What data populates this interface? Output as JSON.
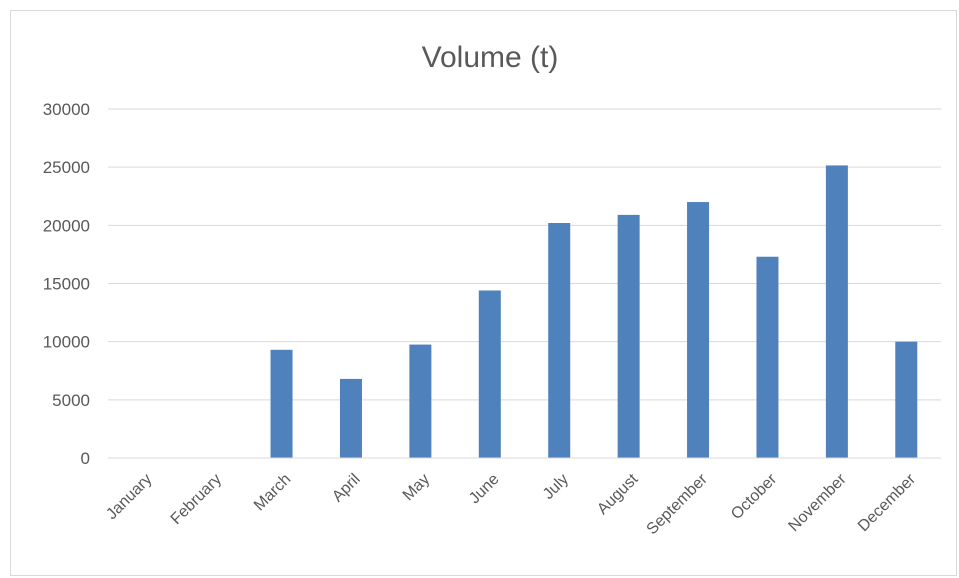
{
  "chart_data": {
    "type": "bar",
    "title": "Volume  (t)",
    "xlabel": "",
    "ylabel": "",
    "categories": [
      "January",
      "February",
      "March",
      "April",
      "May",
      "June",
      "July",
      "August",
      "September",
      "October",
      "November",
      "December"
    ],
    "values": [
      0,
      0,
      9300,
      6800,
      9750,
      14400,
      20200,
      20900,
      22000,
      17300,
      25150,
      10000
    ],
    "ylim": [
      0,
      30000
    ],
    "yticks": [
      0,
      5000,
      10000,
      15000,
      20000,
      25000,
      30000
    ],
    "grid": true,
    "legend": "none",
    "bar_color": "#4f81bd"
  }
}
